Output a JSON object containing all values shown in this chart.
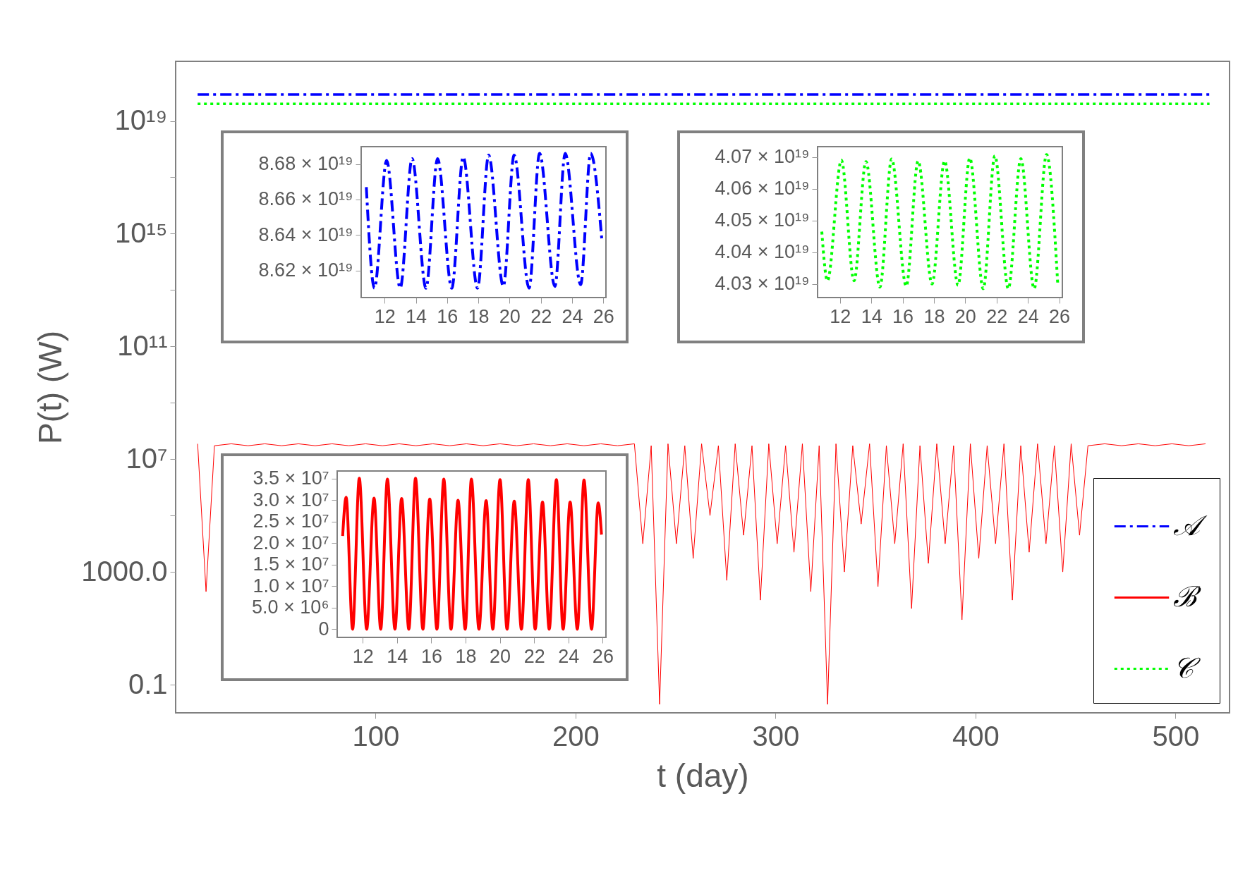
{
  "chart_data": [
    {
      "type": "line",
      "xlabel": "t (day)",
      "ylabel": "P(t) (W)",
      "log": "y",
      "legend": "bottom right",
      "xlim": [
        0,
        527
      ],
      "xticks": [
        100,
        200,
        300,
        400,
        500
      ],
      "ylim": [
        0.01,
        1.3e+21
      ],
      "yticks": [
        0.1,
        {
          "value": 1000,
          "label": "1000.0"
        },
        {
          "value": 100000,
          "label": null
        },
        {
          "value": 10000000,
          "label": "10⁷"
        },
        {
          "value": 1000000000.0,
          "label": null
        },
        {
          "value": 100000000000.0,
          "label": "10¹¹"
        },
        {
          "value": 10000000000000.0,
          "label": null
        },
        {
          "value": 1000000000000000.0,
          "label": "10¹⁵"
        },
        {
          "value": 1e+17,
          "label": null
        },
        {
          "value": 1e+19,
          "label": "10¹⁹"
        }
      ],
      "series": [
        {
          "name": "𝒜",
          "color": "#0000ff",
          "line_style": "dashed",
          "x": [
            11,
            517
          ],
          "values": [
            8.65e+19,
            8.65e+19
          ]
        },
        {
          "name": "ℬ",
          "color": "#ff0000",
          "line_style": "solid",
          "x": [
            11,
            15.2,
            19.4,
            27.8,
            36.2,
            44.6,
            53,
            61.4,
            69.8,
            78.2,
            86.6,
            95,
            103.4,
            111.8,
            120.2,
            128.6,
            137,
            145.4,
            153.8,
            162.2,
            170.6,
            179,
            187.4,
            195.8,
            204.2,
            212.6,
            221,
            229.4,
            233.6,
            237.8,
            242,
            246.2,
            250.4,
            254.6,
            258.8,
            263,
            267.2,
            271.4,
            275.6,
            279.8,
            284,
            288.2,
            292.4,
            296.6,
            300.8,
            305,
            309.2,
            313.4,
            317.6,
            321.8,
            326,
            330.2,
            334.4,
            338.6,
            342.8,
            347,
            351.2,
            355.4,
            359.6,
            363.8,
            368,
            372.2,
            376.4,
            380.6,
            384.8,
            389,
            393.2,
            397.4,
            401.6,
            405.8,
            410,
            414.2,
            418.4,
            422.6,
            426.8,
            431,
            435.2,
            439.4,
            443.6,
            447.8,
            452,
            456.2,
            464.6,
            473,
            481.4,
            489.8,
            498.2,
            506.6,
            515
          ],
          "values": [
            35000000.0,
            200,
            30000000.0,
            35000000.0,
            30000000.0,
            35000000.0,
            30000000.0,
            35000000.0,
            30000000.0,
            35000000.0,
            30000000.0,
            35000000.0,
            30000000.0,
            35000000.0,
            30000000.0,
            35000000.0,
            30000000.0,
            35000000.0,
            30000000.0,
            35000000.0,
            30000000.0,
            35000000.0,
            30000000.0,
            35000000.0,
            30000000.0,
            35000000.0,
            30000000.0,
            35000000.0,
            10000.0,
            30000000.0,
            0.02,
            35000000.0,
            10000.0,
            30000000.0,
            3000.0,
            35000000.0,
            100000.0,
            30000000.0,
            500,
            35000000.0,
            20000.0,
            30000000.0,
            100,
            35000000.0,
            10000.0,
            30000000.0,
            5000.0,
            35000000.0,
            200,
            30000000.0,
            0.02,
            35000000.0,
            1000.0,
            30000000.0,
            50000.0,
            35000000.0,
            300,
            30000000.0,
            10000.0,
            35000000.0,
            50,
            30000000.0,
            2000.0,
            35000000.0,
            10000.0,
            30000000.0,
            20,
            35000000.0,
            3000.0,
            30000000.0,
            10000.0,
            35000000.0,
            100,
            30000000.0,
            5000.0,
            35000000.0,
            10000.0,
            30000000.0,
            1000.0,
            35000000.0,
            20000.0,
            30000000.0,
            35000000.0,
            30000000.0,
            35000000.0,
            30000000.0,
            35000000.0,
            30000000.0,
            35000000.0
          ]
        },
        {
          "name": "𝒞",
          "color": "#00ff00",
          "line_style": "dotted",
          "x": [
            11,
            517
          ],
          "values": [
            4.05e+19,
            4.05e+19
          ]
        }
      ]
    },
    {
      "type": "line",
      "xlim": [
        10.5,
        26.17
      ],
      "xticks": [
        12,
        14,
        16,
        18,
        20,
        22,
        24,
        26
      ],
      "ylim": [
        8.6047e+19,
        8.6898e+19
      ],
      "yticks": [
        {
          "value": 8.62e+19,
          "label": "8.62 × 10¹⁹"
        },
        {
          "value": 8.64e+19,
          "label": "8.64 × 10¹⁹"
        },
        {
          "value": 8.66e+19,
          "label": "8.66 × 10¹⁹"
        },
        {
          "value": 8.68e+19,
          "label": "8.68 × 10¹⁹"
        }
      ],
      "series": [
        {
          "color": "#0000ff",
          "line_style": "dashed",
          "x": [
            10.83,
            11.35,
            12.13,
            13.0,
            13.76,
            14.65,
            15.39,
            16.3,
            17.03,
            17.95,
            18.66,
            19.6,
            20.29,
            21.25,
            21.92,
            22.9,
            23.56,
            24.55,
            25.19,
            25.9
          ],
          "values": [
            8.667e+19,
            8.61e+19,
            8.682e+19,
            8.61e+19,
            8.683e+19,
            8.61e+19,
            8.683e+19,
            8.61e+19,
            8.684e+19,
            8.61e+19,
            8.685e+19,
            8.611e+19,
            8.685e+19,
            8.61e+19,
            8.686e+19,
            8.611e+19,
            8.686e+19,
            8.612e+19,
            8.686e+19,
            8.638e+19
          ]
        }
      ]
    },
    {
      "type": "line",
      "xlim": [
        10.57,
        26.2
      ],
      "xticks": [
        12,
        14,
        16,
        18,
        20,
        22,
        24,
        26
      ],
      "ylim": [
        4.0257e+19,
        4.0733e+19
      ],
      "yticks": [
        {
          "value": 4.03e+19,
          "label": "4.03 × 10¹⁹"
        },
        {
          "value": 4.04e+19,
          "label": "4.04 × 10¹⁹"
        },
        {
          "value": 4.05e+19,
          "label": "4.05 × 10¹⁹"
        },
        {
          "value": 4.06e+19,
          "label": "4.06 × 10¹⁹"
        },
        {
          "value": 4.07e+19,
          "label": "4.07 × 10¹⁹"
        }
      ],
      "series": [
        {
          "color": "#00ff00",
          "line_style": "dotted",
          "x": [
            10.84,
            11.2,
            12.09,
            12.9,
            13.66,
            14.55,
            15.3,
            16.23,
            16.99,
            17.88,
            18.68,
            19.54,
            20.29,
            21.15,
            21.89,
            22.75,
            23.55,
            24.4,
            25.19,
            25.9
          ],
          "values": [
            4.0465e+19,
            4.031e+19,
            4.069e+19,
            4.031e+19,
            4.0686e+19,
            4.029e+19,
            4.0694e+19,
            4.0293e+19,
            4.0688e+19,
            4.03e+19,
            4.0688e+19,
            4.0296e+19,
            4.0697e+19,
            4.0285e+19,
            4.0704e+19,
            4.0285e+19,
            4.0695e+19,
            4.0285e+19,
            4.0708e+19,
            4.0304e+19
          ]
        }
      ]
    },
    {
      "type": "line",
      "xlim": [
        10.51,
        26.19
      ],
      "xticks": [
        12,
        14,
        16,
        18,
        20,
        22,
        24,
        26
      ],
      "ylim": [
        -1900000,
        36800000
      ],
      "yticks": [
        0,
        {
          "value": 5000000,
          "label": "5.0 × 10⁶"
        },
        {
          "value": 10000000,
          "label": "1.0 × 10⁷"
        },
        {
          "value": 15000000,
          "label": "1.5 × 10⁷"
        },
        {
          "value": 20000000,
          "label": "2.0 × 10⁷"
        },
        {
          "value": 25000000,
          "label": "2.5 × 10⁷"
        },
        {
          "value": 30000000,
          "label": "3.0 × 10⁷"
        },
        {
          "value": 35000000,
          "label": "3.5 × 10⁷"
        }
      ],
      "series": [
        {
          "color": "#ff0000",
          "line_style": "solid",
          "x": [
            10.83,
            11.03,
            11.41,
            11.8,
            12.23,
            12.66,
            13.05,
            13.44,
            13.88,
            14.27,
            14.69,
            15.08,
            15.51,
            15.91,
            16.33,
            16.73,
            17.15,
            17.56,
            17.98,
            18.34,
            18.78,
            19.2,
            19.59,
            20.01,
            20.42,
            20.84,
            21.26,
            21.66,
            22.06,
            22.49,
            22.88,
            23.3,
            23.69,
            24.1,
            24.52,
            24.91,
            25.35,
            25.74,
            25.93
          ],
          "values": [
            21700000.0,
            30700000.0,
            0,
            35100000.0,
            0,
            30500000.0,
            0,
            34900000.0,
            0,
            30400000.0,
            0,
            35100000.0,
            0,
            30300000.0,
            0,
            34900000.0,
            0,
            30000000.0,
            0,
            34900000.0,
            0,
            29900000.0,
            0,
            34800000.0,
            0,
            29800000.0,
            0,
            34800000.0,
            0,
            29600000.0,
            0,
            34800000.0,
            0,
            29600000.0,
            0,
            34700000.0,
            0,
            29400000.0,
            22000000.0
          ]
        }
      ]
    }
  ]
}
